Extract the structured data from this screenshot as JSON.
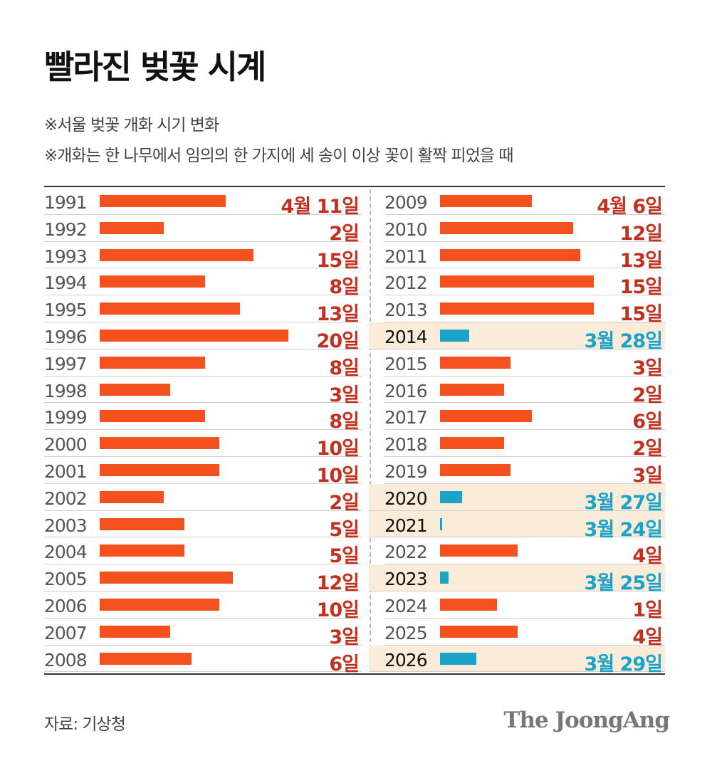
{
  "title": "빨라진 벚꽃 시계",
  "notes": [
    "※서울 벚꽃 개화 시기 변화",
    "※개화는 한 나무에서 임의의 한 가지에 세 송이 이상 꽃이 활짝 피었을 때"
  ],
  "source": "자료: 기상청",
  "logo": "The JoongAng",
  "colors": {
    "april": "#f4511e",
    "april_text": "#c0321f",
    "march": "#1aa3c8",
    "highlight_bg": "#fbebd9"
  },
  "chart_data": {
    "type": "bar",
    "title": "빨라진 벚꽃 시계",
    "unit": "cherry blossom blooming date, Seoul",
    "baseline": "3월 27일",
    "columns": [
      [
        {
          "year": "1991",
          "month": 4,
          "day": 11,
          "label": "4월 11일"
        },
        {
          "year": "1992",
          "month": 4,
          "day": 2,
          "label": "2일"
        },
        {
          "year": "1993",
          "month": 4,
          "day": 15,
          "label": "15일"
        },
        {
          "year": "1994",
          "month": 4,
          "day": 8,
          "label": "8일"
        },
        {
          "year": "1995",
          "month": 4,
          "day": 13,
          "label": "13일"
        },
        {
          "year": "1996",
          "month": 4,
          "day": 20,
          "label": "20일"
        },
        {
          "year": "1997",
          "month": 4,
          "day": 8,
          "label": "8일"
        },
        {
          "year": "1998",
          "month": 4,
          "day": 3,
          "label": "3일"
        },
        {
          "year": "1999",
          "month": 4,
          "day": 8,
          "label": "8일"
        },
        {
          "year": "2000",
          "month": 4,
          "day": 10,
          "label": "10일"
        },
        {
          "year": "2001",
          "month": 4,
          "day": 10,
          "label": "10일"
        },
        {
          "year": "2002",
          "month": 4,
          "day": 2,
          "label": "2일"
        },
        {
          "year": "2003",
          "month": 4,
          "day": 5,
          "label": "5일"
        },
        {
          "year": "2004",
          "month": 4,
          "day": 5,
          "label": "5일"
        },
        {
          "year": "2005",
          "month": 4,
          "day": 12,
          "label": "12일"
        },
        {
          "year": "2006",
          "month": 4,
          "day": 10,
          "label": "10일"
        },
        {
          "year": "2007",
          "month": 4,
          "day": 3,
          "label": "3일"
        },
        {
          "year": "2008",
          "month": 4,
          "day": 6,
          "label": "6일"
        }
      ],
      [
        {
          "year": "2009",
          "month": 4,
          "day": 6,
          "label": "4월 6일"
        },
        {
          "year": "2010",
          "month": 4,
          "day": 12,
          "label": "12일"
        },
        {
          "year": "2011",
          "month": 4,
          "day": 13,
          "label": "13일"
        },
        {
          "year": "2012",
          "month": 4,
          "day": 15,
          "label": "15일"
        },
        {
          "year": "2013",
          "month": 4,
          "day": 15,
          "label": "15일"
        },
        {
          "year": "2014",
          "month": 3,
          "day": 28,
          "label": "3월 28일"
        },
        {
          "year": "2015",
          "month": 4,
          "day": 3,
          "label": "3일"
        },
        {
          "year": "2016",
          "month": 4,
          "day": 2,
          "label": "2일"
        },
        {
          "year": "2017",
          "month": 4,
          "day": 6,
          "label": "6일"
        },
        {
          "year": "2018",
          "month": 4,
          "day": 2,
          "label": "2일"
        },
        {
          "year": "2019",
          "month": 4,
          "day": 3,
          "label": "3일"
        },
        {
          "year": "2020",
          "month": 3,
          "day": 27,
          "label": "3월 27일"
        },
        {
          "year": "2021",
          "month": 3,
          "day": 24,
          "label": "3월 24일"
        },
        {
          "year": "2022",
          "month": 4,
          "day": 4,
          "label": "4일"
        },
        {
          "year": "2023",
          "month": 3,
          "day": 25,
          "label": "3월 25일"
        },
        {
          "year": "2024",
          "month": 4,
          "day": 1,
          "label": "1일"
        },
        {
          "year": "2025",
          "month": 4,
          "day": 4,
          "label": "4일"
        },
        {
          "year": "2026",
          "month": 3,
          "day": 29,
          "label": "3월 29일"
        }
      ]
    ]
  }
}
